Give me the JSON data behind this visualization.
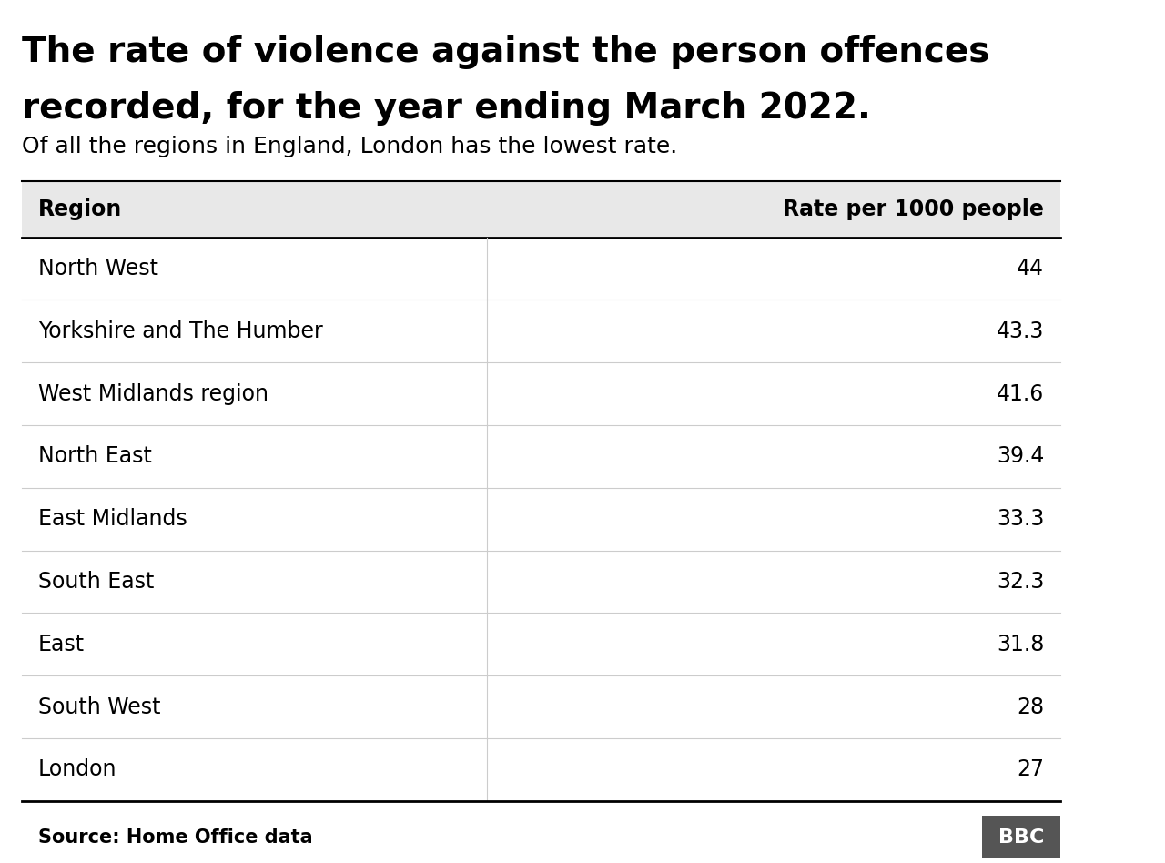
{
  "title_line1": "The rate of violence against the person offences",
  "title_line2": "recorded, for the year ending March 2022.",
  "subtitle": "Of all the regions in England, London has the lowest rate.",
  "col1_header": "Region",
  "col2_header": "Rate per 1000 people",
  "regions": [
    "North West",
    "Yorkshire and The Humber",
    "West Midlands region",
    "North East",
    "East Midlands",
    "South East",
    "East",
    "South West",
    "London"
  ],
  "rates": [
    "44",
    "43.3",
    "41.6",
    "39.4",
    "33.3",
    "32.3",
    "31.8",
    "28",
    "27"
  ],
  "source_text": "Source: Home Office data",
  "bbc_text": "BBC",
  "header_bg": "#e8e8e8",
  "divider_color": "#cccccc",
  "header_divider_color": "#000000",
  "bottom_divider_color": "#000000",
  "title_color": "#000000",
  "header_text_color": "#000000",
  "body_text_color": "#000000",
  "source_text_color": "#000000",
  "bbc_bg_color": "#555555",
  "bbc_text_color": "#ffffff",
  "fig_bg": "#ffffff"
}
